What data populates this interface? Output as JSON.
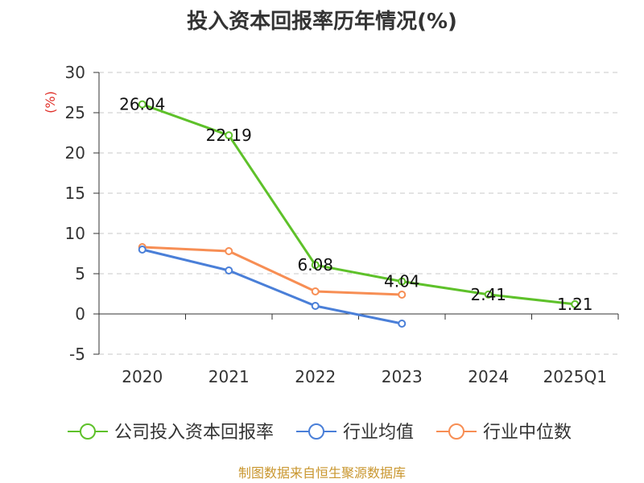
{
  "chart_data": {
    "type": "line",
    "title": "投入资本回报率历年情况(%)",
    "ylabel": "(%)",
    "categories": [
      "2020",
      "2021",
      "2022",
      "2023",
      "2024",
      "2025Q1"
    ],
    "ylim": [
      -5,
      30
    ],
    "yticks": [
      30,
      25,
      20,
      15,
      10,
      5,
      0,
      -5
    ],
    "series": [
      {
        "name": "公司投入资本回报率",
        "color": "#5ec12a",
        "values": [
          26.04,
          22.19,
          6.08,
          4.04,
          2.41,
          1.21
        ],
        "labels": [
          "26.04",
          "22.19",
          "6.08",
          "4.04",
          "2.41",
          "1.21"
        ]
      },
      {
        "name": "行业均值",
        "color": "#4a7fd8",
        "values": [
          8.0,
          5.4,
          1.0,
          -1.2,
          null,
          null
        ]
      },
      {
        "name": "行业中位数",
        "color": "#f78e54",
        "values": [
          8.3,
          7.8,
          2.8,
          2.4,
          null,
          null
        ]
      }
    ],
    "grid": true,
    "legend": "bottom",
    "source": "制图数据来自恒生聚源数据库"
  }
}
